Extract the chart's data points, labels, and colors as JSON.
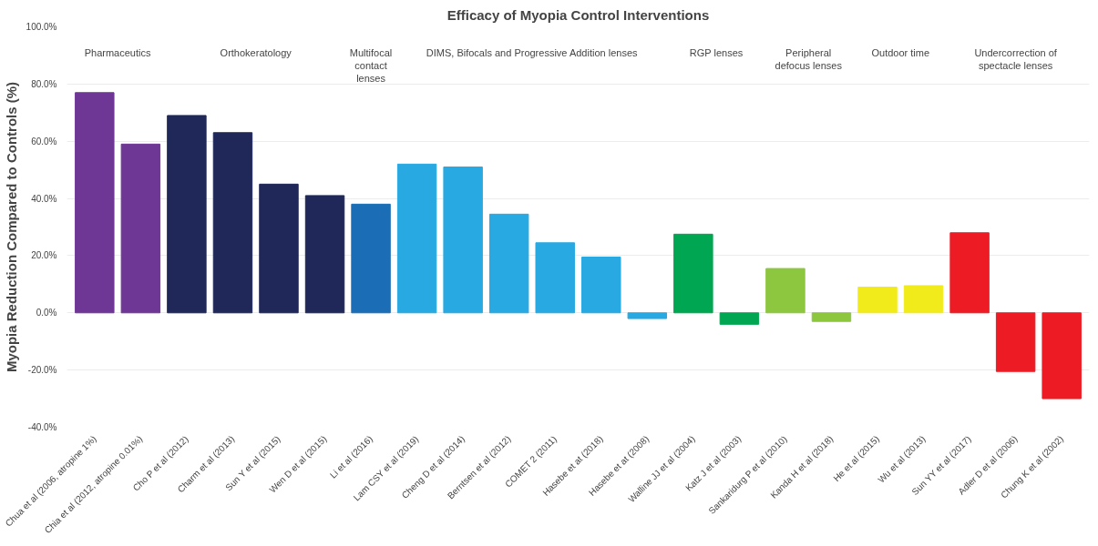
{
  "chart_data": {
    "type": "bar",
    "title": "Efficacy of Myopia Control Interventions",
    "ylabel": "Myopia Reduction Compared to Controls (%)",
    "categories": [
      "Chua et al (2006, atropine 1%)",
      "Chia et al (2012, atropine 0.01%)",
      "Cho P et al (2012)",
      "Charm et al (2013)",
      "Sun Y et al (2015)",
      "Wen D et al (2015)",
      "Li et al (2016)",
      "Lam CSY et al (2019)",
      "Cheng D et al (2014)",
      "Berntsen et al (2012)",
      "COMET 2 (2011)",
      "Hasebe et at (2018)",
      "Hasebe et at (2008)",
      "Walline JJ et al (2004)",
      "Katz J et al (2003)",
      "Sankaridurg P et al (2010)",
      "Kanda H et al (2018)",
      "He et al (2015)",
      "Wu et al (2013)",
      "Sun YY et al (2017)",
      "Adler D et al (2006)",
      "Chung K et al (2002)"
    ],
    "values": [
      77,
      59,
      69,
      63,
      45,
      41,
      38,
      52,
      51,
      34.5,
      24.5,
      19.5,
      -2,
      27.5,
      -4,
      15.5,
      -3,
      9,
      9.5,
      28,
      -20.5,
      -30
    ],
    "colors": [
      "#6f3795",
      "#6f3795",
      "#1f2859",
      "#1f2859",
      "#1f2859",
      "#1f2859",
      "#1b6eb5",
      "#29a9e1",
      "#29a9e1",
      "#29a9e1",
      "#29a9e1",
      "#29a9e1",
      "#29a9e1",
      "#00a651",
      "#00a651",
      "#8dc63f",
      "#8dc63f",
      "#f2eb1c",
      "#f2eb1c",
      "#ed1c24",
      "#ed1c24",
      "#ed1c24"
    ],
    "ylim": [
      -40,
      100
    ],
    "yticks": [
      {
        "value": -40,
        "label": "-40.0%"
      },
      {
        "value": -20,
        "label": "-20.0%"
      },
      {
        "value": 0,
        "label": "0.0%"
      },
      {
        "value": 20,
        "label": "20.0%"
      },
      {
        "value": 40,
        "label": "40.0%"
      },
      {
        "value": 60,
        "label": "60.0%"
      },
      {
        "value": 80,
        "label": "80.0%"
      },
      {
        "value": 100,
        "label": "100.0%"
      }
    ],
    "grid": "y",
    "annotations": [
      "Pharmaceutics",
      "Orthokeratology",
      "Multifocal\ncontact\nlenses",
      "DIMS, Bifocals and Progressive Addition lenses",
      "RGP lenses",
      "Peripheral\ndefocus lenses",
      "Outdoor time",
      "Undercorrection of\nspectacle lenses"
    ]
  }
}
